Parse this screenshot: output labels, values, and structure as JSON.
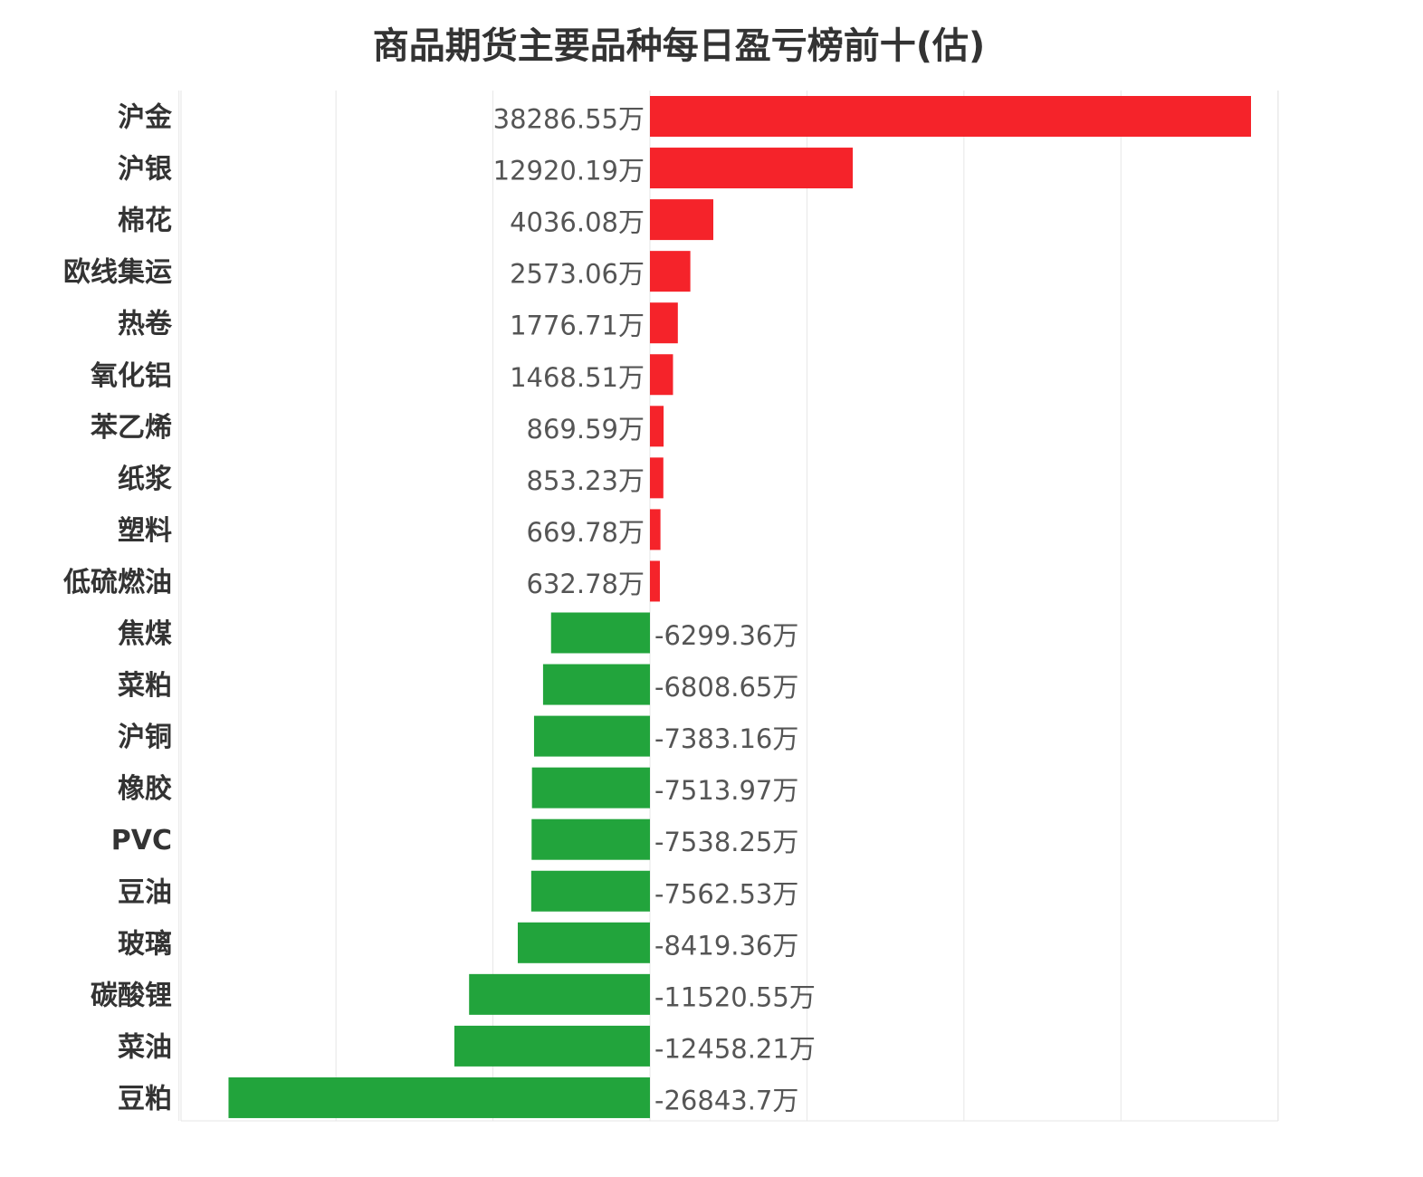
{
  "chart_data": {
    "type": "bar",
    "orientation": "horizontal",
    "title": "商品期货主要品种每日盈亏榜前十(估)",
    "value_suffix": "万",
    "xlim": [
      -40000,
      40000
    ],
    "grid": true,
    "colors": {
      "positive": "#f5232a",
      "negative": "#22a43c"
    },
    "categories": [
      "沪金",
      "沪银",
      "棉花",
      "欧线集运",
      "热卷",
      "氧化铝",
      "苯乙烯",
      "纸浆",
      "塑料",
      "低硫燃油",
      "焦煤",
      "菜粕",
      "沪铜",
      "橡胶",
      "PVC",
      "豆油",
      "玻璃",
      "碳酸锂",
      "菜油",
      "豆粕"
    ],
    "values": [
      38286.55,
      12920.19,
      4036.08,
      2573.06,
      1776.71,
      1468.51,
      869.59,
      853.23,
      669.78,
      632.78,
      -6299.36,
      -6808.65,
      -7383.16,
      -7513.97,
      -7538.25,
      -7562.53,
      -8419.36,
      -11520.55,
      -12458.21,
      -26843.7
    ],
    "value_labels": [
      "38286.55万",
      "12920.19万",
      "4036.08万",
      "2573.06万",
      "1776.71万",
      "1468.51万",
      "869.59万",
      "853.23万",
      "669.78万",
      "632.78万",
      "-6299.36万",
      "-6808.65万",
      "-7383.16万",
      "-7513.97万",
      "-7538.25万",
      "-7562.53万",
      "-8419.36万",
      "-11520.55万",
      "-12458.21万",
      "-26843.7万"
    ]
  }
}
